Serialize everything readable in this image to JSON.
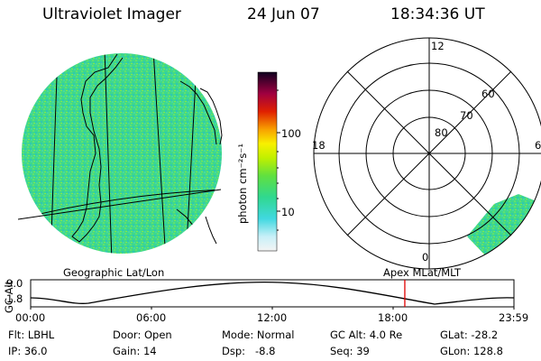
{
  "header": {
    "title": "Ultraviolet Imager",
    "date": "24 Jun 07",
    "time": "18:34:36 UT"
  },
  "colorbar": {
    "unit_label": "photon cm⁻²s⁻¹",
    "tick_labels": [
      "100",
      "10"
    ],
    "scale": "log"
  },
  "geo_map": {
    "label": "Geographic Lat/Lon",
    "disk_color": "#3ed88c"
  },
  "polar_plot": {
    "label": "Apex MLat/MLT",
    "mlt_labels": {
      "top": "12",
      "left": "18",
      "right": "6",
      "bottom": "0"
    },
    "mlat_labels": [
      "60",
      "70",
      "80"
    ],
    "patch_color": "#3ed88c"
  },
  "altitude_strip": {
    "axis_label": "GC Alt",
    "y_ticks": [
      "9.0",
      "1.8"
    ],
    "x_ticks": [
      "00:00",
      "06:00",
      "12:00",
      "18:00",
      "23:59"
    ],
    "marker_color": "#e00000",
    "marker_time_hours": 18.58
  },
  "info": {
    "flt": "Flt: LBHL",
    "ip": "IP: 36.0",
    "door": "Door: Open",
    "gain": "Gain: 14",
    "mode": "Mode: Normal",
    "dsp": "Dsp:   -8.8",
    "gc_alt": "GC Alt: 4.0 Re",
    "seq": "Seq: 39",
    "glat": "GLat: -28.2",
    "glon": "GLon: 128.8"
  }
}
